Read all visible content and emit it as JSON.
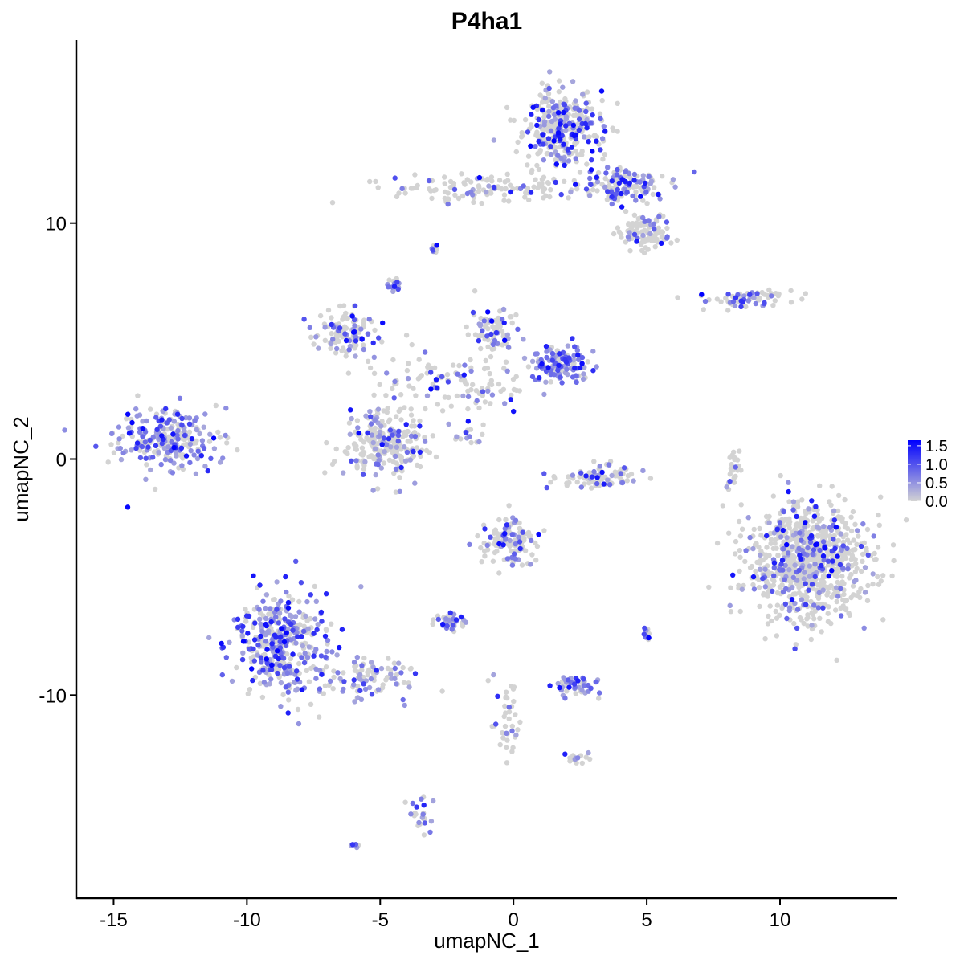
{
  "chart_data": {
    "type": "scatter",
    "title": "P4ha1",
    "xlabel": "umapNC_1",
    "ylabel": "umapNC_2",
    "xlim": [
      -16.4,
      14.4
    ],
    "ylim": [
      -18.6,
      17.75
    ],
    "x_ticks": [
      -15,
      -10,
      -5,
      0,
      5,
      10
    ],
    "x_tick_labels": [
      "-15",
      "-10",
      "-5",
      "0",
      "5",
      "10"
    ],
    "y_ticks": [
      -10,
      0,
      10
    ],
    "y_tick_labels": [
      "-10",
      "0",
      "10"
    ],
    "grid": false,
    "color_scale": {
      "low_color": "#D3D3D3",
      "high_color": "#0000FF",
      "range": [
        0,
        1.65
      ],
      "ticks": [
        0.0,
        0.5,
        1.0,
        1.5
      ],
      "tick_labels": [
        "0.0",
        "0.5",
        "1.0",
        "1.5"
      ],
      "legend_placement": "right"
    },
    "clusters": [
      {
        "center": [
          -13.0,
          0.9
        ],
        "spread": [
          0.95,
          0.7
        ],
        "n": 260,
        "fraction_expressing": 0.6
      },
      {
        "center": [
          1.8,
          14.0
        ],
        "spread": [
          0.7,
          0.8
        ],
        "n": 360,
        "fraction_expressing": 0.35
      },
      {
        "center": [
          4.0,
          11.6
        ],
        "spread": [
          0.9,
          0.4
        ],
        "n": 150,
        "fraction_expressing": 0.4
      },
      {
        "center": [
          5.1,
          9.6
        ],
        "spread": [
          0.5,
          0.4
        ],
        "n": 100,
        "fraction_expressing": 0.25
      },
      {
        "center": [
          -1.0,
          11.5
        ],
        "spread": [
          1.8,
          0.3
        ],
        "n": 120,
        "fraction_expressing": 0.2
      },
      {
        "center": [
          -6.3,
          5.3
        ],
        "spread": [
          0.6,
          0.45
        ],
        "n": 120,
        "fraction_expressing": 0.35
      },
      {
        "center": [
          -4.8,
          0.7
        ],
        "spread": [
          0.75,
          0.7
        ],
        "n": 250,
        "fraction_expressing": 0.3
      },
      {
        "center": [
          -2.0,
          3.2
        ],
        "spread": [
          1.6,
          0.6
        ],
        "n": 120,
        "fraction_expressing": 0.35
      },
      {
        "center": [
          1.8,
          4.0
        ],
        "spread": [
          0.5,
          0.4
        ],
        "n": 130,
        "fraction_expressing": 0.7
      },
      {
        "center": [
          -0.8,
          5.5
        ],
        "spread": [
          0.45,
          0.5
        ],
        "n": 80,
        "fraction_expressing": 0.35
      },
      {
        "center": [
          -8.8,
          -7.8
        ],
        "spread": [
          0.85,
          1.1
        ],
        "n": 400,
        "fraction_expressing": 0.6
      },
      {
        "center": [
          -5.5,
          -9.3
        ],
        "spread": [
          1.0,
          0.45
        ],
        "n": 100,
        "fraction_expressing": 0.45
      },
      {
        "center": [
          11.0,
          -4.3
        ],
        "spread": [
          1.1,
          1.2
        ],
        "n": 900,
        "fraction_expressing": 0.2
      },
      {
        "center": [
          -0.1,
          -3.5
        ],
        "spread": [
          0.5,
          0.5
        ],
        "n": 130,
        "fraction_expressing": 0.3
      },
      {
        "center": [
          3.2,
          -0.7
        ],
        "spread": [
          0.7,
          0.25
        ],
        "n": 90,
        "fraction_expressing": 0.3
      },
      {
        "center": [
          2.3,
          -9.6
        ],
        "spread": [
          0.45,
          0.2
        ],
        "n": 50,
        "fraction_expressing": 0.6
      },
      {
        "center": [
          -2.5,
          -6.9
        ],
        "spread": [
          0.35,
          0.2
        ],
        "n": 40,
        "fraction_expressing": 0.5
      },
      {
        "center": [
          8.7,
          6.8
        ],
        "spread": [
          0.9,
          0.2
        ],
        "n": 70,
        "fraction_expressing": 0.45
      },
      {
        "center": [
          -4.5,
          7.4
        ],
        "spread": [
          0.15,
          0.15
        ],
        "n": 15,
        "fraction_expressing": 0.5
      },
      {
        "center": [
          -2.9,
          8.9
        ],
        "spread": [
          0.12,
          0.12
        ],
        "n": 10,
        "fraction_expressing": 0.5
      },
      {
        "center": [
          -3.5,
          -15.1
        ],
        "spread": [
          0.2,
          0.4
        ],
        "n": 25,
        "fraction_expressing": 0.5
      },
      {
        "center": [
          -6.0,
          -16.3
        ],
        "spread": [
          0.08,
          0.05
        ],
        "n": 6,
        "fraction_expressing": 0.9
      },
      {
        "center": [
          5.0,
          -7.5
        ],
        "spread": [
          0.1,
          0.2
        ],
        "n": 10,
        "fraction_expressing": 0.6
      },
      {
        "center": [
          2.3,
          -12.7
        ],
        "spread": [
          0.3,
          0.1
        ],
        "n": 15,
        "fraction_expressing": 0.4
      },
      {
        "center": [
          -0.2,
          -11.0
        ],
        "spread": [
          0.3,
          0.8
        ],
        "n": 40,
        "fraction_expressing": 0.2
      },
      {
        "center": [
          8.3,
          -0.3
        ],
        "spread": [
          0.15,
          0.6
        ],
        "n": 25,
        "fraction_expressing": 0.2
      },
      {
        "center": [
          -1.7,
          1.1
        ],
        "spread": [
          0.3,
          0.25
        ],
        "n": 15,
        "fraction_expressing": 0.4
      }
    ]
  }
}
